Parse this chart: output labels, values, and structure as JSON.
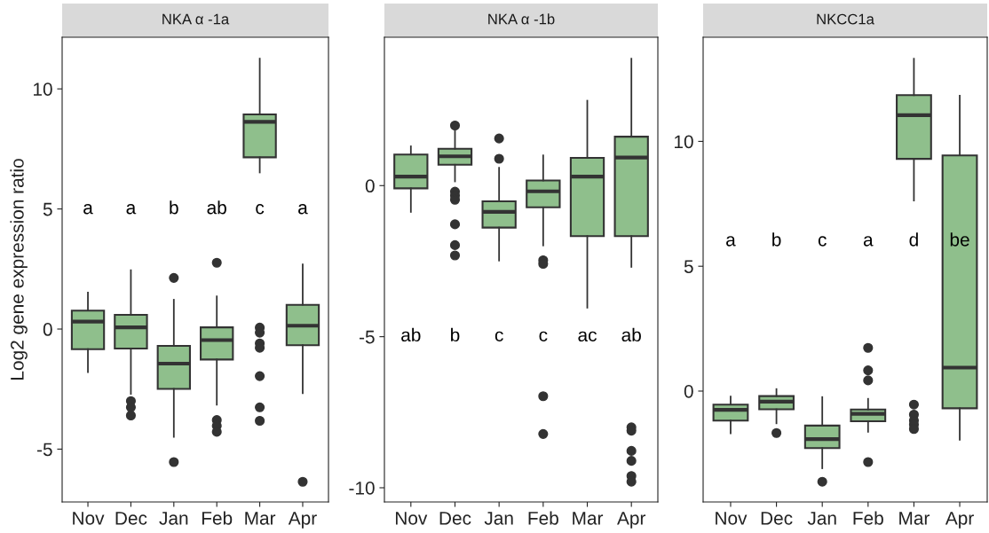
{
  "chart_data": [
    {
      "type": "box",
      "title": "NKA α -1a",
      "ylabel": "Log2 gene expression ratio",
      "categories": [
        "Nov",
        "Dec",
        "Jan",
        "Feb",
        "Mar",
        "Apr"
      ],
      "color": "#8fbf8c",
      "grid": false,
      "ylim": [
        -7.2,
        12.15
      ],
      "yticks": [
        -5,
        0,
        5,
        10
      ],
      "boxes": [
        {
          "low": -1.79,
          "q1": -0.84,
          "median": 0.31,
          "q3": 0.77,
          "high": 1.52
        },
        {
          "low": -2.7,
          "q1": -0.81,
          "median": 0.07,
          "q3": 0.59,
          "high": 2.45,
          "outliers": [
            -3.0,
            -3.26,
            -3.6
          ]
        },
        {
          "low": -4.49,
          "q1": -2.49,
          "median": -1.44,
          "q3": -0.7,
          "high": 1.22,
          "outliers": [
            2.13,
            -5.54
          ]
        },
        {
          "low": -3.15,
          "q1": -1.27,
          "median": -0.46,
          "q3": 0.07,
          "high": 1.36,
          "outliers": [
            2.76,
            -3.79,
            -4.03,
            -4.28
          ]
        },
        {
          "low": 6.52,
          "q1": 7.15,
          "median": 8.63,
          "q3": 8.94,
          "high": 11.26,
          "outliers": [
            0.06,
            -0.15,
            -0.6,
            -0.78,
            -1.96,
            -3.26,
            -3.82
          ]
        },
        {
          "low": -2.67,
          "q1": -0.67,
          "median": 0.14,
          "q3": 1.01,
          "high": 2.69,
          "outliers": [
            -6.36
          ]
        }
      ],
      "annotations": [
        "a",
        "a",
        "b",
        "ab",
        "c",
        "a"
      ]
    },
    {
      "type": "box",
      "title": "NKA α -1b",
      "categories": [
        "Nov",
        "Dec",
        "Jan",
        "Feb",
        "Mar",
        "Apr"
      ],
      "color": "#8fbf8c",
      "grid": false,
      "ylim": [
        -10.47,
        4.91
      ],
      "yticks": [
        -10,
        -5,
        0
      ],
      "boxes": [
        {
          "low": -0.87,
          "q1": -0.09,
          "median": 0.3,
          "q3": 1.03,
          "high": 1.3
        },
        {
          "low": 0.14,
          "q1": 0.69,
          "median": 0.97,
          "q3": 1.22,
          "high": 1.87,
          "outliers": [
            1.99,
            -0.2,
            -0.33,
            -0.47,
            -1.28,
            -1.97,
            -2.31
          ]
        },
        {
          "low": -2.48,
          "q1": -1.39,
          "median": -0.87,
          "q3": -0.52,
          "high": 0.59,
          "outliers": [
            1.56,
            0.89
          ]
        },
        {
          "low": -1.98,
          "q1": -0.72,
          "median": -0.19,
          "q3": 0.17,
          "high": 1.0,
          "outliers": [
            -2.47,
            -2.59,
            -6.97,
            -8.22
          ]
        },
        {
          "low": -4.04,
          "q1": -1.67,
          "median": 0.3,
          "q3": 0.92,
          "high": 2.81
        },
        {
          "low": -2.69,
          "q1": -1.67,
          "median": 0.93,
          "q3": 1.62,
          "high": 4.2,
          "outliers": [
            -8.0,
            -8.11,
            -8.78,
            -9.11,
            -9.61,
            -9.8
          ]
        }
      ],
      "annotations": [
        "ab",
        "b",
        "c",
        "c",
        "ac",
        "ab"
      ]
    },
    {
      "type": "box",
      "title": "NKCC1a",
      "categories": [
        "Nov",
        "Dec",
        "Jan",
        "Feb",
        "Mar",
        "Apr"
      ],
      "color": "#8fbf8c",
      "grid": false,
      "ylim": [
        -4.44,
        14.17
      ],
      "yticks": [
        0,
        5,
        10
      ],
      "boxes": [
        {
          "low": -1.69,
          "q1": -1.18,
          "median": -0.75,
          "q3": -0.54,
          "high": -0.22
        },
        {
          "low": -1.29,
          "q1": -0.73,
          "median": -0.42,
          "q3": -0.2,
          "high": 0.08,
          "outliers": [
            -1.68
          ]
        },
        {
          "low": -3.09,
          "q1": -2.28,
          "median": -1.92,
          "q3": -1.38,
          "high": -0.24,
          "outliers": [
            -3.63
          ]
        },
        {
          "low": -1.63,
          "q1": -1.21,
          "median": -0.91,
          "q3": -0.74,
          "high": -0.31,
          "outliers": [
            1.73,
            0.83,
            0.43,
            -2.84
          ]
        },
        {
          "low": 7.63,
          "q1": 9.3,
          "median": 11.05,
          "q3": 11.85,
          "high": 13.31,
          "outliers": [
            -0.54,
            -0.94,
            -1.18,
            -1.34,
            -1.52
          ]
        },
        {
          "low": -1.95,
          "q1": -0.69,
          "median": 0.94,
          "q3": 9.44,
          "high": 11.83
        }
      ],
      "annotations": [
        "a",
        "b",
        "c",
        "a",
        "d",
        "be"
      ]
    }
  ]
}
